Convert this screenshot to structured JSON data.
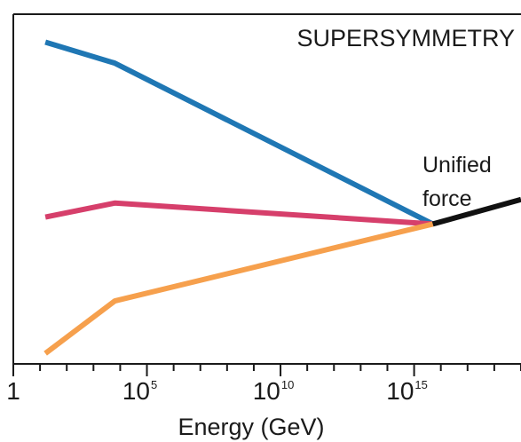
{
  "chart_data": {
    "type": "line",
    "title": "SUPERSYMMETRY",
    "xlabel": "Energy (GeV)",
    "ylabel": "",
    "x_scale": "log",
    "xlim_exponent": [
      0,
      19
    ],
    "x_ticks": [
      {
        "base": "1",
        "exp": ""
      },
      {
        "base": "10",
        "exp": "5"
      },
      {
        "base": "10",
        "exp": "10"
      },
      {
        "base": "10",
        "exp": "15"
      }
    ],
    "ylim": [
      0,
      100
    ],
    "grid": false,
    "legend": "none",
    "annotation": {
      "lines": [
        "Unified",
        "force"
      ],
      "at_x_exponent": 15.7,
      "at_y": 40
    },
    "series": [
      {
        "color": "#1f77b4",
        "points": [
          [
            1.2,
            92
          ],
          [
            3.8,
            86
          ],
          [
            15.7,
            40
          ]
        ]
      },
      {
        "color": "#d63f6b",
        "points": [
          [
            1.2,
            42
          ],
          [
            3.8,
            46
          ],
          [
            15.7,
            40
          ]
        ]
      },
      {
        "color": "#f6a04d",
        "points": [
          [
            1.2,
            3
          ],
          [
            3.8,
            18
          ],
          [
            15.7,
            40
          ]
        ]
      },
      {
        "color": "#111111",
        "points": [
          [
            15.7,
            40
          ],
          [
            19,
            47
          ]
        ]
      }
    ]
  }
}
